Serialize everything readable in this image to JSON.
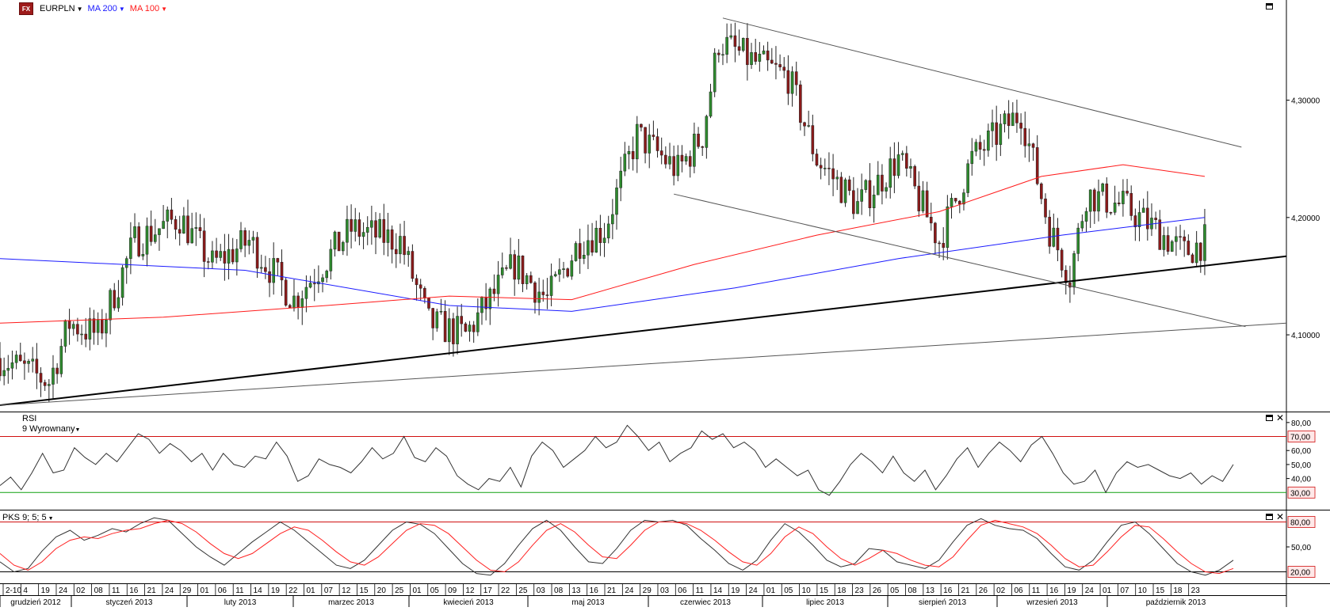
{
  "header": {
    "logo": "FX",
    "symbol": "EURPLN",
    "indicators": [
      {
        "label": "MA 200",
        "color": "#1a1aff"
      },
      {
        "label": "MA 100",
        "color": "#ff1a1a"
      }
    ]
  },
  "colors": {
    "bull_candle": "#2e8b2e",
    "bear_candle": "#8b1a1a",
    "ma200": "#1a1aff",
    "ma100": "#ff1a1a",
    "rsi_line": "#333333",
    "overbought_line": "#d01010",
    "oversold_line": "#10a010",
    "pks_fast": "#333333",
    "pks_slow": "#ff2020"
  },
  "panels": {
    "rsi": {
      "title": "RSI",
      "subtitle": "9 Wyrownany",
      "upper": "70,00",
      "lower": "30,00"
    },
    "pks": {
      "title": "PKS 9; 5; 5",
      "upper": "80,00",
      "lower": "20,00"
    }
  },
  "chart_data": [
    {
      "type": "candlestick",
      "title": "EURPLN",
      "ylim": [
        4.04,
        4.38
      ],
      "y_ticks": [
        "4,10000",
        "4,20000",
        "4,30000"
      ],
      "date_range": [
        "2012-12-10",
        "2013-10-23"
      ],
      "anchors": [
        {
          "t": 0,
          "p": 4.08
        },
        {
          "t": 12,
          "p": 4.06
        },
        {
          "t": 17,
          "p": 4.11
        },
        {
          "t": 24,
          "p": 4.1
        },
        {
          "t": 33,
          "p": 4.18
        },
        {
          "t": 44,
          "p": 4.2
        },
        {
          "t": 52,
          "p": 4.16
        },
        {
          "t": 61,
          "p": 4.18
        },
        {
          "t": 72,
          "p": 4.13
        },
        {
          "t": 86,
          "p": 4.19
        },
        {
          "t": 98,
          "p": 4.18
        },
        {
          "t": 105,
          "p": 4.11
        },
        {
          "t": 114,
          "p": 4.1
        },
        {
          "t": 126,
          "p": 4.16
        },
        {
          "t": 134,
          "p": 4.13
        },
        {
          "t": 142,
          "p": 4.18
        },
        {
          "t": 148,
          "p": 4.19
        },
        {
          "t": 156,
          "p": 4.27
        },
        {
          "t": 166,
          "p": 4.24
        },
        {
          "t": 172,
          "p": 4.27
        },
        {
          "t": 176,
          "p": 4.35
        },
        {
          "t": 186,
          "p": 4.33
        },
        {
          "t": 193,
          "p": 4.32
        },
        {
          "t": 200,
          "p": 4.25
        },
        {
          "t": 210,
          "p": 4.21
        },
        {
          "t": 220,
          "p": 4.25
        },
        {
          "t": 230,
          "p": 4.18
        },
        {
          "t": 238,
          "p": 4.25
        },
        {
          "t": 244,
          "p": 4.27
        },
        {
          "t": 250,
          "p": 4.29
        },
        {
          "t": 257,
          "p": 4.19
        },
        {
          "t": 262,
          "p": 4.15
        },
        {
          "t": 266,
          "p": 4.22
        },
        {
          "t": 275,
          "p": 4.21
        },
        {
          "t": 283,
          "p": 4.19
        },
        {
          "t": 290,
          "p": 4.17
        },
        {
          "t": 295,
          "p": 4.18
        }
      ],
      "ma200": {
        "color": "#1a1aff",
        "points": [
          [
            0,
            4.165
          ],
          [
            60,
            4.155
          ],
          [
            110,
            4.125
          ],
          [
            140,
            4.12
          ],
          [
            180,
            4.14
          ],
          [
            220,
            4.165
          ],
          [
            260,
            4.185
          ],
          [
            295,
            4.2
          ]
        ]
      },
      "ma100": {
        "color": "#ff1a1a",
        "points": [
          [
            0,
            4.11
          ],
          [
            40,
            4.115
          ],
          [
            80,
            4.125
          ],
          [
            110,
            4.133
          ],
          [
            140,
            4.13
          ],
          [
            170,
            4.16
          ],
          [
            200,
            4.185
          ],
          [
            230,
            4.205
          ],
          [
            255,
            4.235
          ],
          [
            275,
            4.245
          ],
          [
            295,
            4.235
          ]
        ]
      },
      "trendlines": [
        {
          "from": [
            0,
            4.04
          ],
          "to": [
            315,
            4.167
          ],
          "bold": true
        },
        {
          "from": [
            0,
            4.04
          ],
          "to": [
            315,
            4.11
          ],
          "bold": false
        },
        {
          "from": [
            177,
            4.37
          ],
          "to": [
            304,
            4.26
          ],
          "bold": false
        },
        {
          "from": [
            165,
            4.22
          ],
          "to": [
            305,
            4.107
          ],
          "bold": false
        }
      ]
    },
    {
      "type": "line",
      "title": "RSI",
      "ylim": [
        20,
        85
      ],
      "y_ticks": [
        "80,00",
        "60,00",
        "50,00",
        "40,00"
      ],
      "levels": [
        "70,00",
        "30,00"
      ],
      "series": [
        {
          "values": [
            35,
            41,
            32,
            44,
            58,
            44,
            46,
            62,
            55,
            50,
            58,
            52,
            62,
            72,
            68,
            58,
            65,
            60,
            52,
            58,
            46,
            58,
            50,
            48,
            56,
            54,
            66,
            56,
            38,
            42,
            54,
            50,
            48,
            44,
            52,
            62,
            54,
            58,
            70,
            55,
            52,
            62,
            56,
            42,
            36,
            32,
            40,
            38,
            48,
            34,
            56,
            66,
            60,
            48,
            54,
            60,
            70,
            62,
            66,
            78,
            70,
            60,
            66,
            52,
            58,
            62,
            74,
            68,
            72,
            62,
            66,
            60,
            48,
            54,
            48,
            42,
            46,
            32,
            28,
            38,
            50,
            58,
            52,
            44,
            56,
            44,
            38,
            46,
            32,
            42,
            54,
            62,
            48,
            58,
            66,
            60,
            52,
            64,
            70,
            58,
            44,
            36,
            38,
            46,
            30,
            44,
            52,
            48,
            50,
            46,
            42,
            40,
            44,
            36,
            42,
            38,
            50
          ]
        }
      ]
    },
    {
      "type": "line",
      "title": "PKS 9; 5; 5",
      "ylim": [
        10,
        90
      ],
      "y_ticks": [
        "50,00"
      ],
      "levels": [
        "80,00",
        "20,00"
      ],
      "series": [
        {
          "values": [
            32,
            20,
            24,
            45,
            62,
            70,
            58,
            64,
            72,
            68,
            78,
            85,
            82,
            66,
            50,
            38,
            28,
            42,
            56,
            68,
            80,
            70,
            56,
            42,
            28,
            24,
            34,
            52,
            70,
            80,
            77,
            66,
            48,
            30,
            18,
            16,
            30,
            52,
            72,
            82,
            70,
            50,
            32,
            30,
            48,
            70,
            82,
            80,
            82,
            76,
            60,
            46,
            30,
            22,
            34,
            58,
            78,
            68,
            52,
            34,
            26,
            30,
            48,
            46,
            32,
            28,
            24,
            34,
            56,
            76,
            84,
            76,
            72,
            70,
            60,
            42,
            26,
            22,
            34,
            56,
            76,
            80,
            66,
            48,
            30,
            20,
            16,
            22,
            34
          ]
        },
        {
          "values": [
            42,
            28,
            22,
            32,
            48,
            58,
            62,
            60,
            66,
            70,
            72,
            78,
            82,
            78,
            68,
            54,
            42,
            36,
            42,
            54,
            66,
            74,
            70,
            58,
            44,
            32,
            28,
            38,
            54,
            70,
            78,
            76,
            66,
            50,
            34,
            22,
            20,
            32,
            52,
            70,
            78,
            68,
            52,
            38,
            36,
            52,
            70,
            80,
            80,
            78,
            70,
            58,
            44,
            32,
            28,
            42,
            62,
            74,
            66,
            50,
            36,
            28,
            36,
            46,
            42,
            34,
            28,
            26,
            38,
            58,
            76,
            82,
            78,
            74,
            66,
            52,
            36,
            26,
            28,
            44,
            62,
            76,
            74,
            60,
            44,
            30,
            20,
            18,
            24
          ]
        }
      ]
    }
  ],
  "time_axis": {
    "day_labels": [
      "2-10",
      "4",
      "19",
      "24",
      "02",
      "08",
      "11",
      "16",
      "21",
      "24",
      "29",
      "01",
      "06",
      "11",
      "14",
      "19",
      "22",
      "01",
      "07",
      "12",
      "15",
      "20",
      "25",
      "01",
      "05",
      "09",
      "12",
      "17",
      "22",
      "25",
      "03",
      "08",
      "13",
      "16",
      "21",
      "24",
      "29",
      "03",
      "06",
      "11",
      "14",
      "19",
      "24",
      "01",
      "05",
      "10",
      "15",
      "18",
      "23",
      "26",
      "05",
      "08",
      "13",
      "16",
      "21",
      "26",
      "02",
      "06",
      "11",
      "16",
      "19",
      "24",
      "01",
      "07",
      "10",
      "15",
      "18",
      "23"
    ],
    "month_labels": [
      "grudzień 2012",
      "styczeń 2013",
      "luty 2013",
      "marzec 2013",
      "kwiecień 2013",
      "maj 2013",
      "czerwiec 2013",
      "lipiec 2013",
      "sierpień 2013",
      "wrzesień 2013",
      "październik 2013"
    ]
  }
}
